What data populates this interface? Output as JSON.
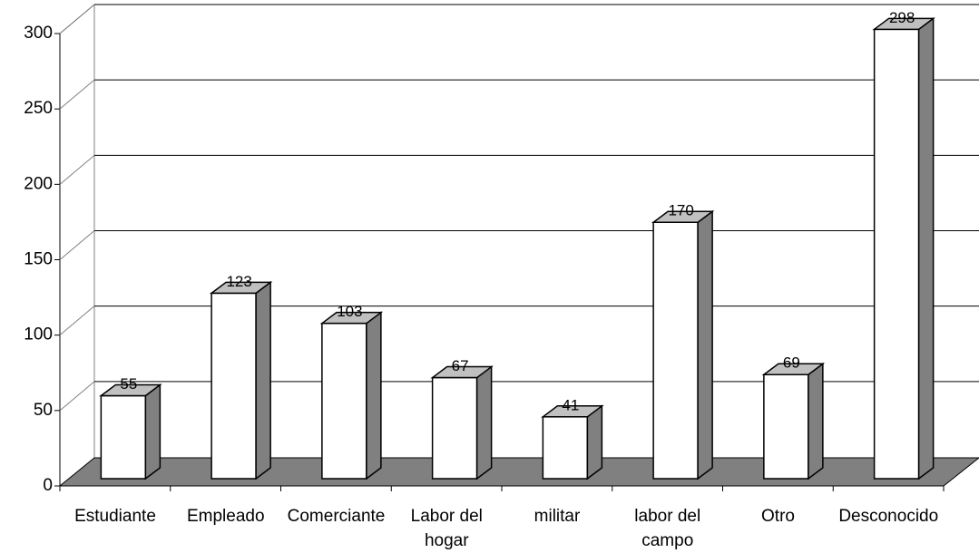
{
  "chart_data": {
    "type": "bar3d",
    "categories": [
      "Estudiante",
      "Empleado",
      "Comerciante",
      "Labor del hogar",
      "militar",
      "labor del campo",
      "Otro",
      "Desconocido"
    ],
    "values": [
      55,
      123,
      103,
      67,
      41,
      170,
      69,
      298
    ],
    "color": "#ffffff",
    "side_color": "#808080",
    "top_color": "#c0c0c0",
    "ylim": [
      0,
      300
    ],
    "yticks": [
      0,
      50,
      100,
      150,
      200,
      250,
      300
    ],
    "grid": true
  }
}
